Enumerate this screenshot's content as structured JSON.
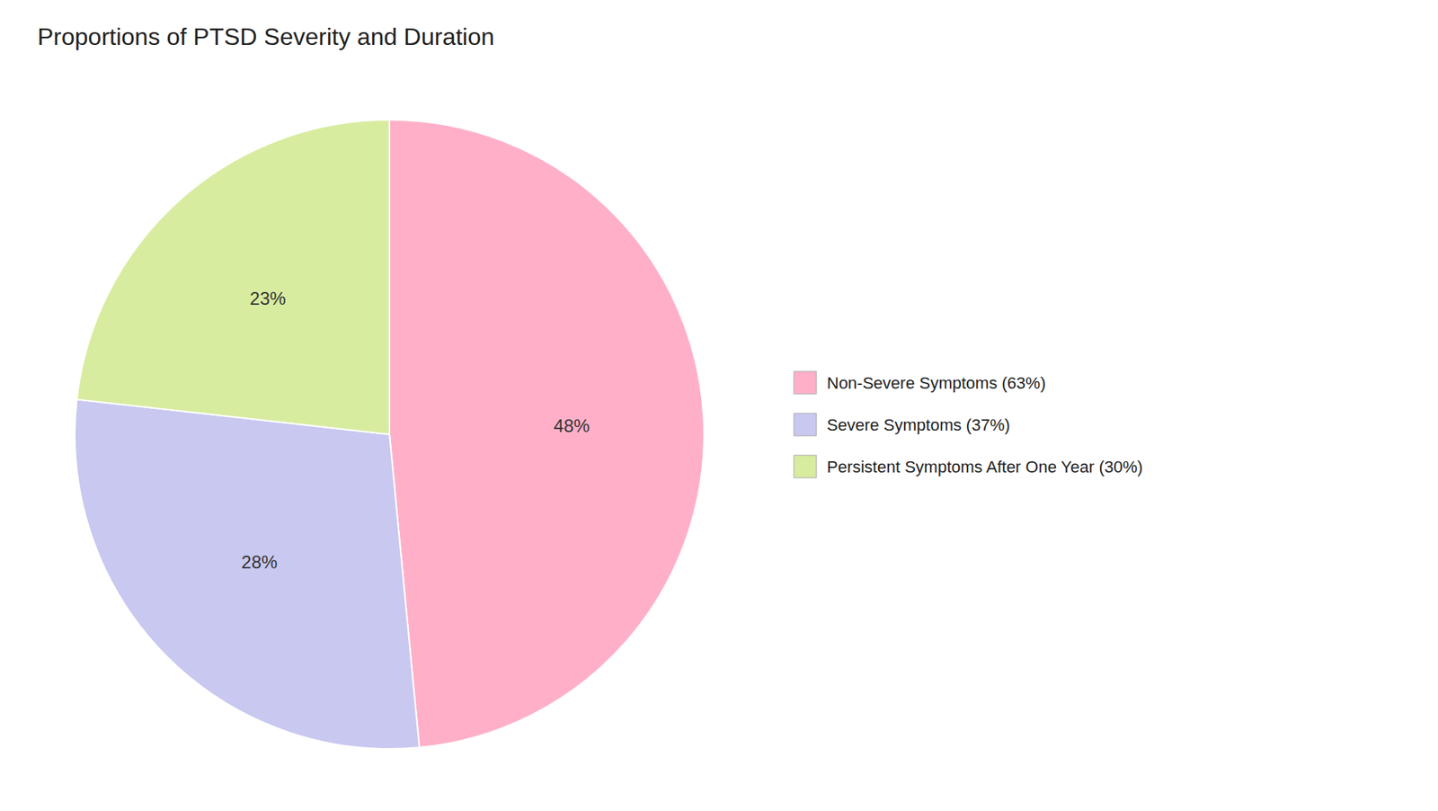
{
  "chart_data": {
    "type": "pie",
    "title": "Proportions of PTSD Severity and Duration",
    "categories": [
      "Non-Severe Symptoms (63%)",
      "Severe Symptoms (37%)",
      "Persistent Symptoms After One Year (30%)"
    ],
    "values": [
      48,
      28,
      23
    ],
    "value_labels": [
      "48%",
      "28%",
      "23%"
    ],
    "colors": [
      "#FFB0C8",
      "#C8C8F0",
      "#D8ECA0"
    ],
    "data_labels": true,
    "legend": "right"
  }
}
